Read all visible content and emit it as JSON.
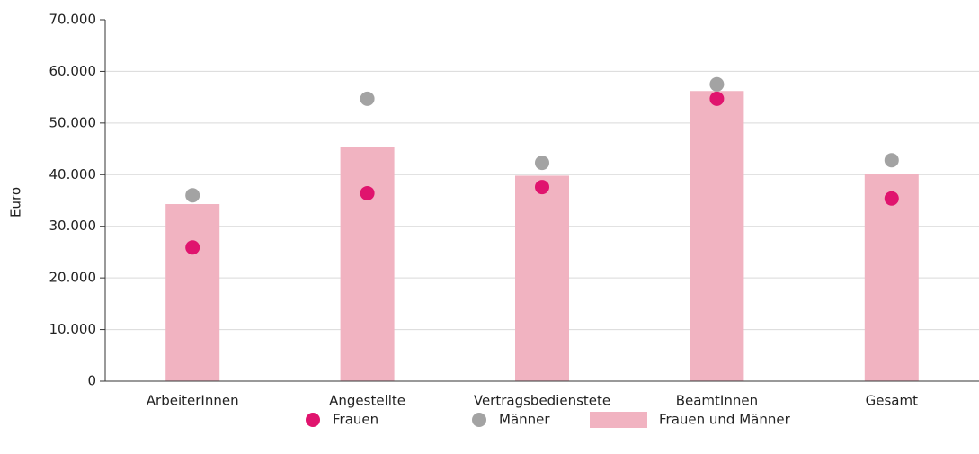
{
  "chart_data": {
    "type": "bar",
    "y_label": "Euro",
    "categories": [
      "ArbeiterInnen",
      "Angestellte",
      "Vertragsbedienstete",
      "BeamtInnen",
      "Gesamt"
    ],
    "series": [
      {
        "name": "Frauen",
        "type": "scatter",
        "color": "#e0146e",
        "values": [
          25900,
          36400,
          37600,
          54700,
          35400
        ]
      },
      {
        "name": "Männer",
        "type": "scatter",
        "color": "#a3a3a3",
        "values": [
          36000,
          54700,
          42300,
          57500,
          42800
        ]
      },
      {
        "name": "Frauen und Männer",
        "type": "bar",
        "color": "#f1b3c1",
        "values": [
          34300,
          45300,
          39800,
          56200,
          40200
        ]
      }
    ],
    "ylim": [
      0,
      70000
    ],
    "yticks": [
      0,
      {
        "value": 10000,
        "label": "10.000"
      },
      {
        "value": 20000,
        "label": "20.000"
      },
      {
        "value": 30000,
        "label": "30.000"
      },
      {
        "value": 40000,
        "label": "40.000"
      },
      {
        "value": 50000,
        "label": "50.000"
      },
      {
        "value": 60000,
        "label": "60.000"
      },
      {
        "value": 70000,
        "label": "70.000"
      }
    ],
    "grid": true,
    "legend": "bottom"
  }
}
